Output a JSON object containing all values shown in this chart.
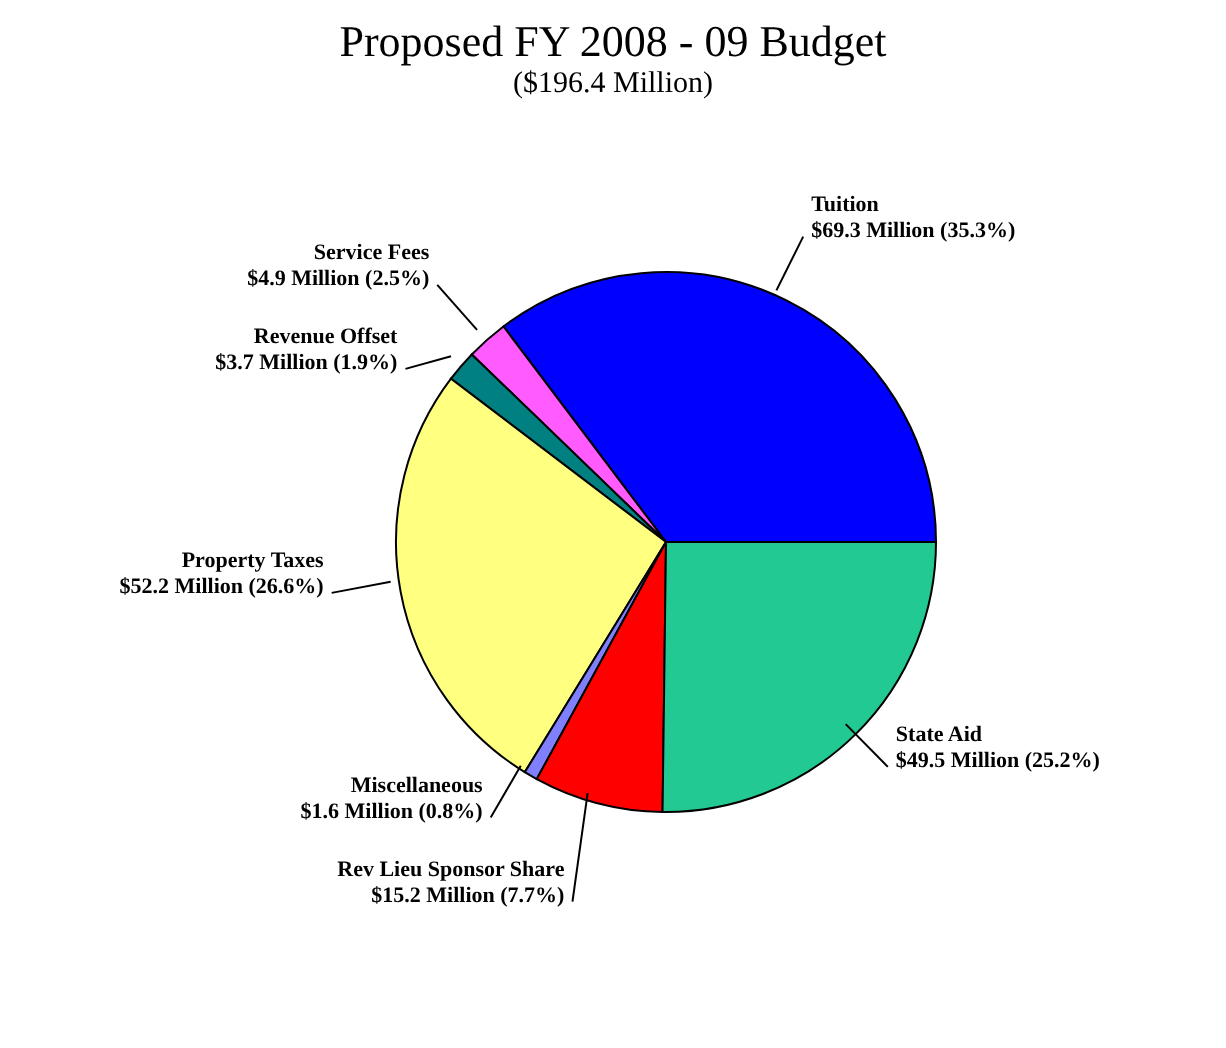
{
  "chart_data": {
    "type": "pie",
    "title": "Proposed FY 2008 - 09 Budget",
    "subtitle": "($196.4 Million)",
    "categories": [
      "Tuition",
      "Service Fees",
      "Revenue Offset",
      "Property Taxes",
      "Miscellaneous",
      "Rev Lieu Sponsor Share",
      "State Aid"
    ],
    "values": [
      69.3,
      4.9,
      3.7,
      52.2,
      1.6,
      15.2,
      49.5
    ],
    "value_labels": [
      "$69.3 Million (35.3%)",
      "$4.9 Million (2.5%)",
      "$3.7 Million (1.9%)",
      "$52.2 Million (26.6%)",
      "$1.6 Million (0.8%)",
      "$15.2 Million (7.7%)",
      "$49.5 Million (25.2%)"
    ],
    "colors": [
      "#0000ff",
      "#ff5bff",
      "#008080",
      "#ffff80",
      "#8080ff",
      "#ff0000",
      "#22c993"
    ],
    "legend": false
  }
}
